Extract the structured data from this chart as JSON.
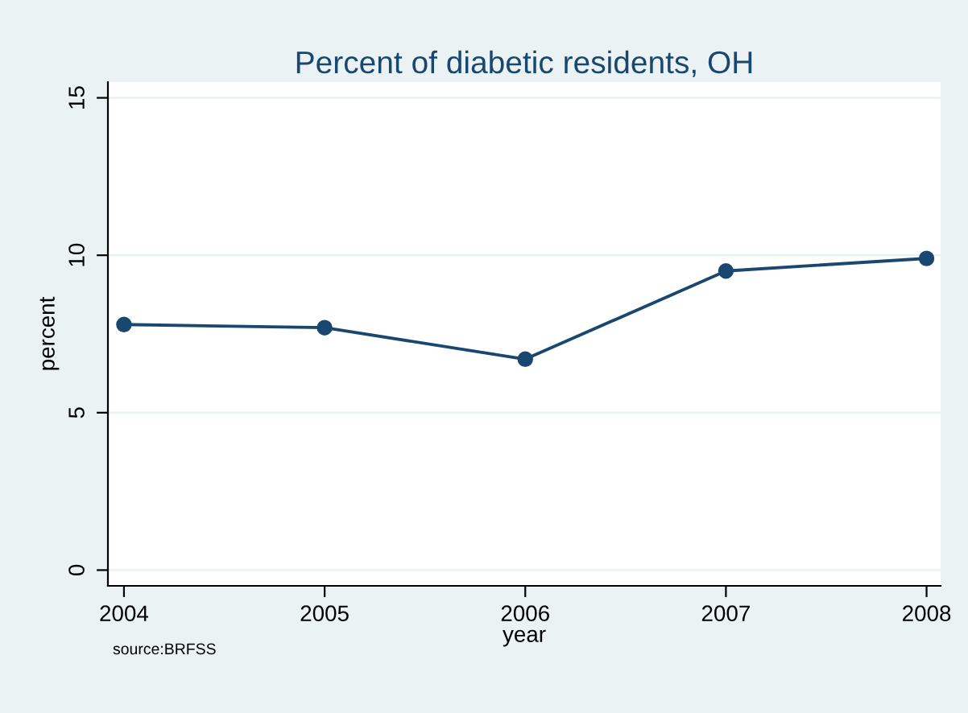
{
  "chart_data": {
    "type": "line",
    "title": "Percent of diabetic residents, OH",
    "xlabel": "year",
    "ylabel": "percent",
    "x": [
      2004,
      2005,
      2006,
      2007,
      2008
    ],
    "series": [
      {
        "color": "#1a476f",
        "values": [
          7.8,
          7.7,
          6.7,
          9.5,
          9.9
        ]
      }
    ],
    "xlim": [
      2003.92,
      2008.07
    ],
    "xticks": [
      2004,
      2005,
      2006,
      2007,
      2008
    ],
    "ylim": [
      -0.5,
      15.5
    ],
    "yticks": [
      0,
      5,
      10,
      15
    ],
    "grid": "y",
    "marker": "circle",
    "line_style": "solid",
    "legend": false,
    "annotations": [
      "source:BRFSS"
    ]
  }
}
